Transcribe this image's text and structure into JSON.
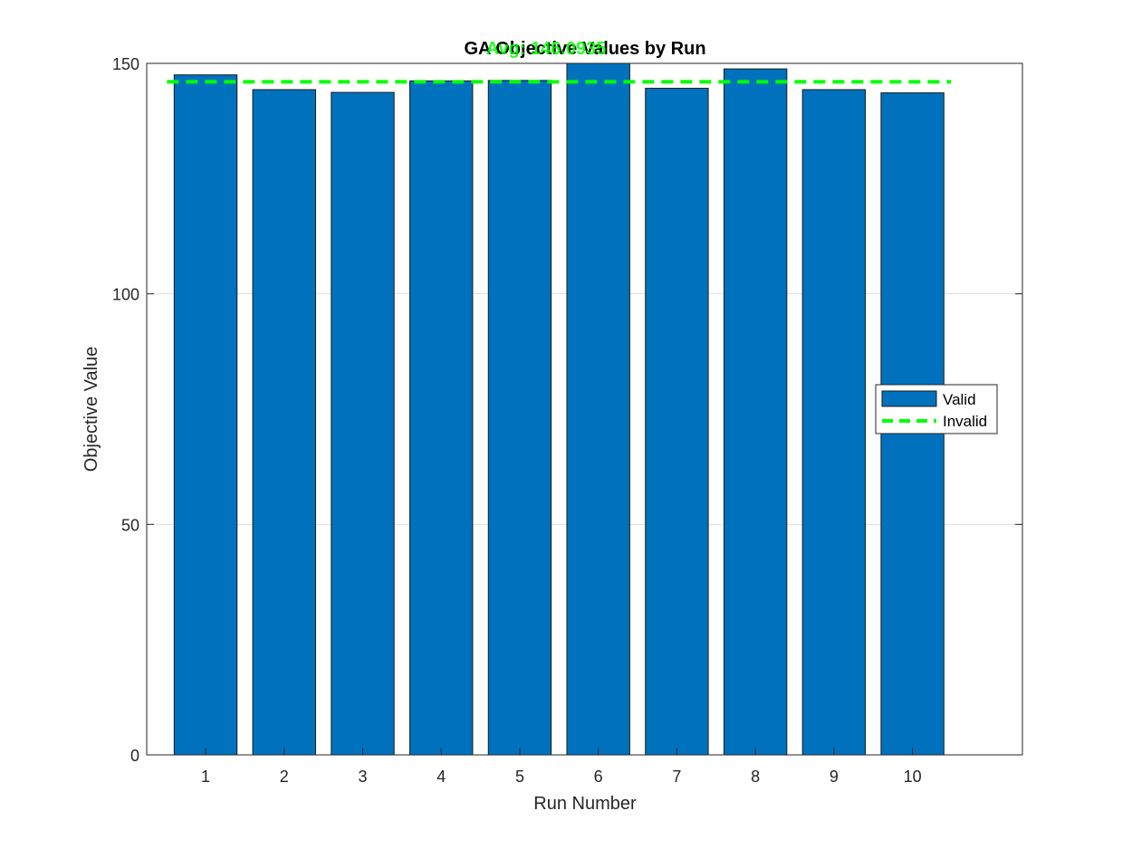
{
  "chart_data": {
    "type": "bar",
    "title": "GA Objective Values by Run",
    "xlabel": "Run Number",
    "ylabel": "Objective Value",
    "categories": [
      "1",
      "2",
      "3",
      "4",
      "5",
      "6",
      "7",
      "8",
      "9",
      "10"
    ],
    "series": [
      {
        "name": "Valid",
        "values": [
          147.5,
          144.3,
          143.7,
          146.2,
          146.3,
          150.4,
          144.6,
          148.8,
          144.3,
          143.6
        ],
        "color": "#0072BD"
      }
    ],
    "reference_line": {
      "name": "Invalid",
      "value": 146.0,
      "color": "#00FF00",
      "style": "dashed",
      "label": "Avg: 146.0935"
    },
    "ylim": [
      0,
      150
    ],
    "yticks": [
      0,
      50,
      100,
      150
    ],
    "grid": true,
    "legend_position": "east"
  }
}
